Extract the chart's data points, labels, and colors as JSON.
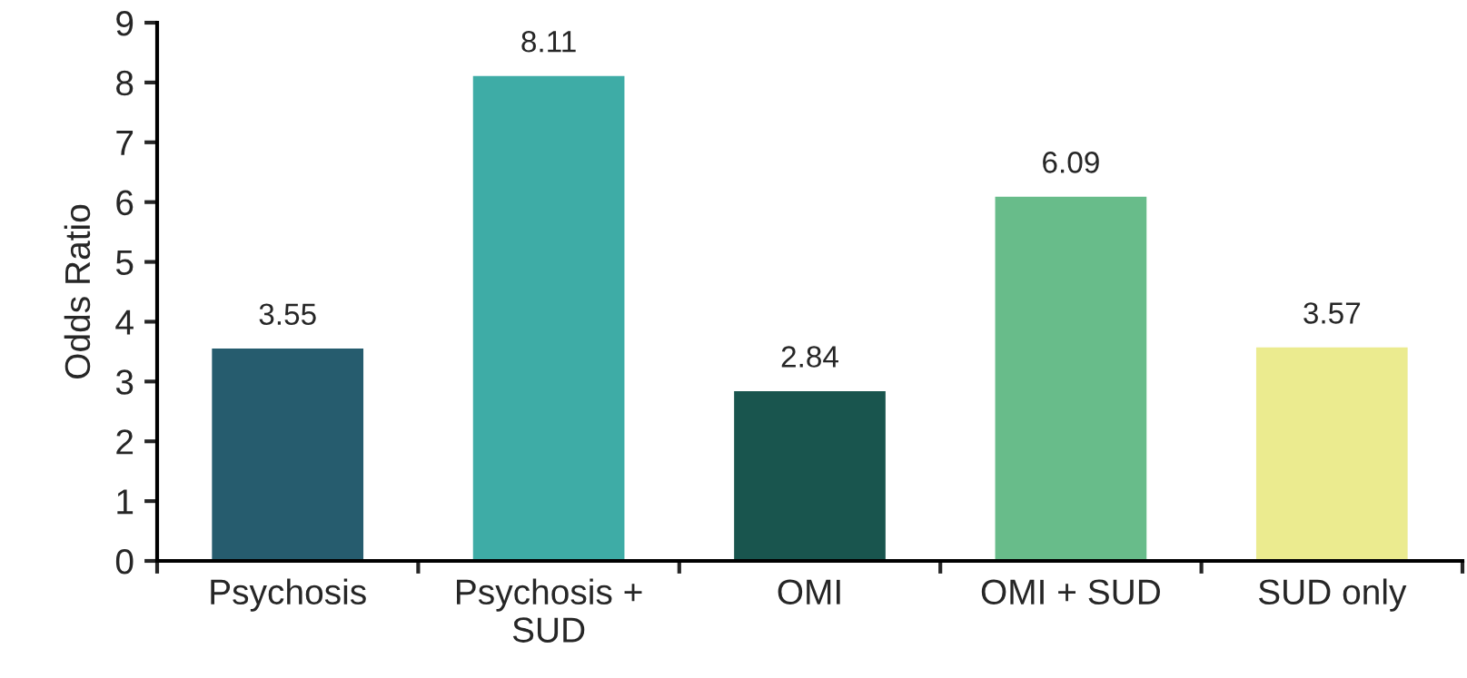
{
  "chart_data": {
    "type": "bar",
    "ylabel": "Odds Ratio",
    "categories": [
      "Psychosis",
      "Psychosis +\nSUD",
      "OMI",
      "OMI + SUD",
      "SUD only"
    ],
    "values": [
      3.55,
      8.11,
      2.84,
      6.09,
      3.57
    ],
    "colors": [
      "#265c6e",
      "#3eaca6",
      "#19554e",
      "#68bc8a",
      "#ebeb8f"
    ],
    "ylim": [
      0,
      9
    ],
    "yticks": [
      0,
      1,
      2,
      3,
      4,
      5,
      6,
      7,
      8,
      9
    ],
    "data_labels": true,
    "grid": false,
    "legend": false
  }
}
